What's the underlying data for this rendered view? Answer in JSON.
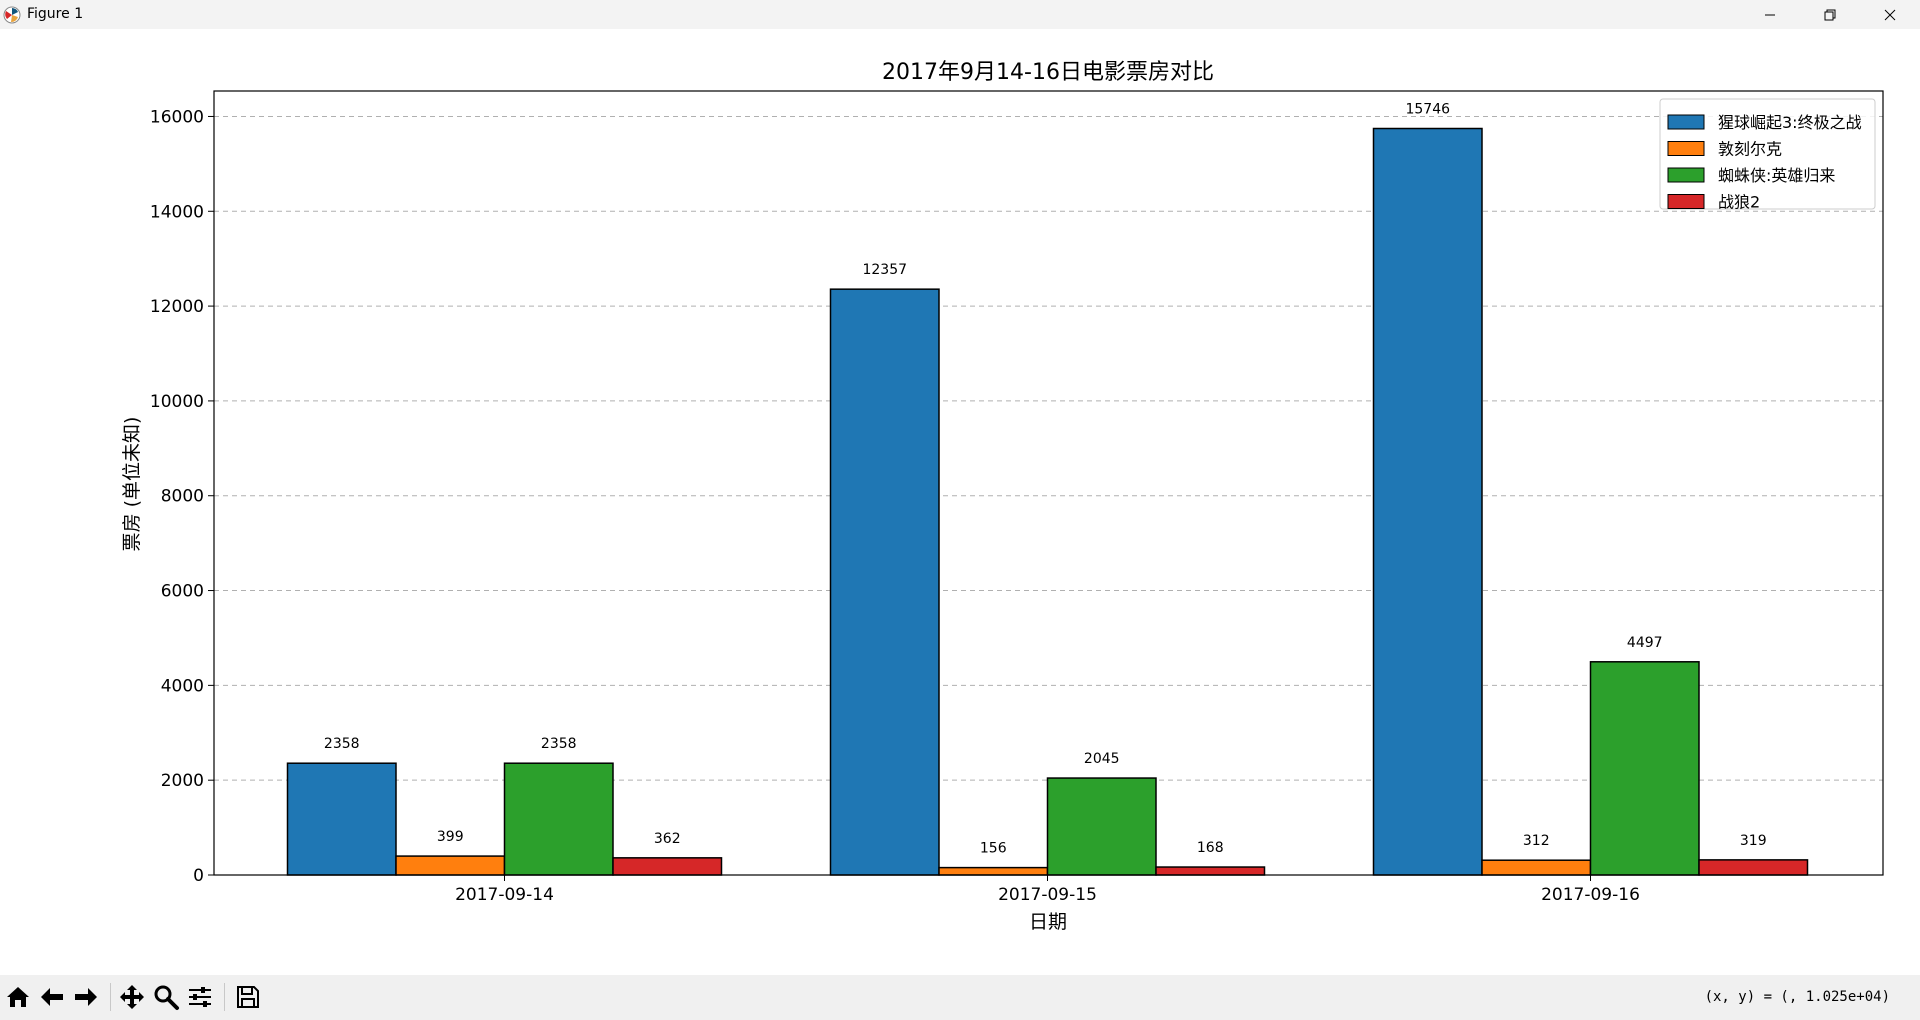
{
  "window": {
    "title": "Figure 1",
    "buttons": {
      "minimize": "minimize",
      "restore": "restore",
      "close": "close"
    }
  },
  "toolbar": {
    "tools": [
      {
        "name": "home",
        "icon": "home-icon"
      },
      {
        "name": "back",
        "icon": "arrow-left-icon"
      },
      {
        "name": "forward",
        "icon": "arrow-right-icon"
      },
      {
        "name": "pan",
        "icon": "move-icon"
      },
      {
        "name": "zoom",
        "icon": "magnifier-icon"
      },
      {
        "name": "configure-subplots",
        "icon": "sliders-icon"
      },
      {
        "name": "save",
        "icon": "floppy-disk-icon"
      }
    ],
    "coords_text": "(x, y) = (, 1.025e+04)"
  },
  "chart_data": {
    "type": "bar",
    "title": "2017年9月14-16日电影票房对比",
    "xlabel": "日期",
    "ylabel": "票房 (单位未知)",
    "categories": [
      "2017-09-14",
      "2017-09-15",
      "2017-09-16"
    ],
    "series": [
      {
        "name": "猩球崛起3:终极之战",
        "color": "#1f77b4",
        "values": [
          2358,
          12357,
          15746
        ]
      },
      {
        "name": "敦刻尔克",
        "color": "#ff7f0e",
        "values": [
          399,
          156,
          312
        ]
      },
      {
        "name": "蜘蛛侠:英雄归来",
        "color": "#2ca02c",
        "values": [
          2358,
          2045,
          4497
        ]
      },
      {
        "name": "战狼2",
        "color": "#d62728",
        "values": [
          362,
          168,
          319
        ]
      }
    ],
    "ylim": [
      0,
      16537
    ],
    "yticks": [
      0,
      2000,
      4000,
      6000,
      8000,
      10000,
      12000,
      14000,
      16000
    ],
    "grid": {
      "y": true,
      "style": "dashed"
    },
    "legend_position": "top-right",
    "data_labels": true
  }
}
